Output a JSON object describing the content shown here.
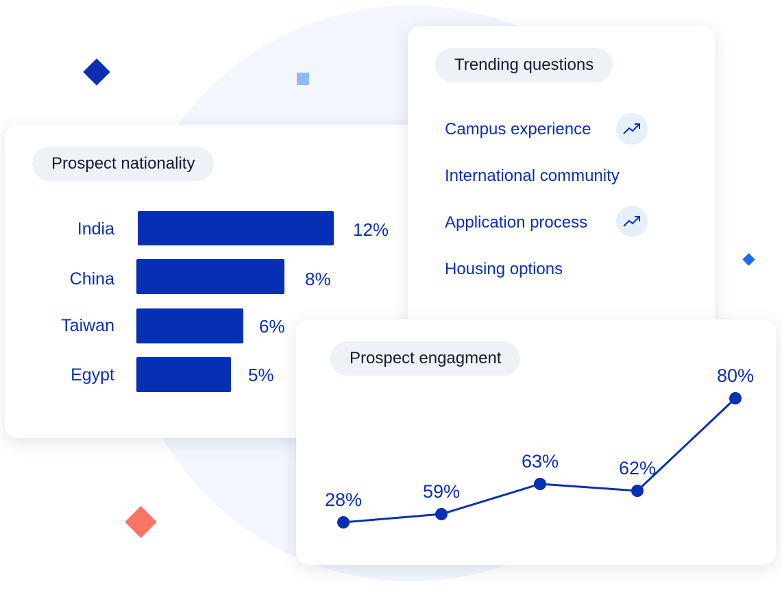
{
  "decor_colors": {
    "navy": "#0a2fb5",
    "light_blue": "#8bbcf5",
    "blue": "#1a6df2",
    "coral": "#fa7468",
    "background_circle": "#f3f6fc"
  },
  "nationality": {
    "title": "Prospect nationality"
  },
  "trending": {
    "title": "Trending questions",
    "items": [
      {
        "label": "Campus experience",
        "trending": true,
        "icon": "trend-up-icon"
      },
      {
        "label": "International community",
        "trending": false
      },
      {
        "label": "Application process",
        "trending": true,
        "icon": "trend-up-icon"
      },
      {
        "label": "Housing options",
        "trending": false
      }
    ]
  },
  "engagement": {
    "title": "Prospect engagment"
  },
  "chart_data": [
    {
      "type": "bar",
      "orientation": "horizontal",
      "title": "Prospect nationality",
      "categories": [
        "India",
        "China",
        "Taiwan",
        "Egypt"
      ],
      "values": [
        12,
        8,
        6,
        5
      ],
      "value_labels": [
        "12%",
        "8%",
        "6%",
        "5%"
      ],
      "unit": "%",
      "bar_color": "#0530b5"
    },
    {
      "type": "line",
      "title": "Prospect engagment",
      "values": [
        28,
        59,
        63,
        62,
        80
      ],
      "value_labels": [
        "28%",
        "59%",
        "63%",
        "62%",
        "80%"
      ],
      "unit": "%",
      "line_color": "#0a2fb5"
    }
  ]
}
